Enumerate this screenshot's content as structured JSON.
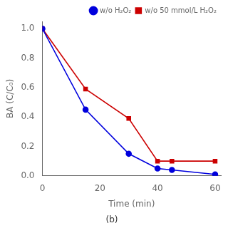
{
  "chart_data": {
    "type": "line",
    "subtitle": "(b)",
    "xlabel": "Time (min)",
    "ylabel": "BA (C/C₀)",
    "x": [
      0,
      15,
      30,
      40,
      45,
      60
    ],
    "series": [
      {
        "name": "w/o H₂O₂",
        "color": "#0000dd",
        "marker": "circle",
        "values": [
          1.0,
          0.45,
          0.15,
          0.05,
          0.04,
          0.01
        ]
      },
      {
        "name": "w/o 50 mmol/L H₂O₂",
        "color": "#cc0000",
        "marker": "square",
        "values": [
          1.0,
          0.59,
          0.39,
          0.1,
          0.1,
          0.1
        ]
      }
    ],
    "xlim": [
      0,
      62
    ],
    "xticks": [
      0,
      20,
      40,
      60
    ],
    "ylim": [
      0,
      1.05
    ],
    "yticks": [
      {
        "value": 0,
        "label": "0.0"
      },
      0.2,
      0.4,
      0.6,
      0.8,
      {
        "value": 1,
        "label": "1.0"
      }
    ],
    "grid": false,
    "legend": "upper right"
  }
}
